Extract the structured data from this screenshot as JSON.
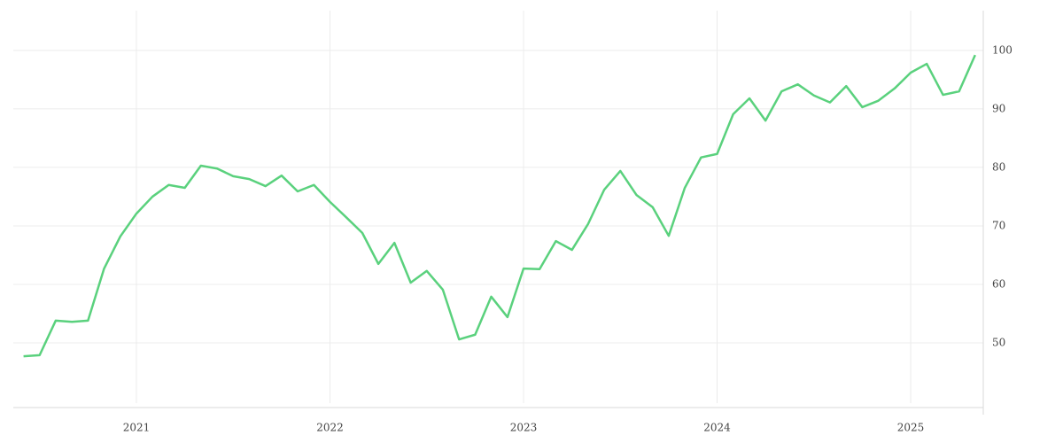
{
  "chart_data": {
    "type": "line",
    "x": [
      2020.417,
      2020.5,
      2020.583,
      2020.667,
      2020.75,
      2020.833,
      2020.917,
      2021,
      2021.083,
      2021.167,
      2021.25,
      2021.333,
      2021.417,
      2021.5,
      2021.583,
      2021.667,
      2021.75,
      2021.833,
      2021.917,
      2022,
      2022.083,
      2022.167,
      2022.25,
      2022.333,
      2022.417,
      2022.5,
      2022.583,
      2022.667,
      2022.75,
      2022.833,
      2022.917,
      2023,
      2023.083,
      2023.167,
      2023.25,
      2023.333,
      2023.417,
      2023.5,
      2023.583,
      2023.667,
      2023.75,
      2023.833,
      2023.917,
      2024,
      2024.083,
      2024.167,
      2024.25,
      2024.333,
      2024.417,
      2024.5,
      2024.583,
      2024.667,
      2024.75,
      2024.833,
      2024.917,
      2025,
      2025.083,
      2025.167,
      2025.25,
      2025.333
    ],
    "series": [
      {
        "color": "#5ad17d",
        "values": [
          47.7,
          47.9,
          53.8,
          53.6,
          53.8,
          62.7,
          68.2,
          72.1,
          75.0,
          77.0,
          76.5,
          80.3,
          79.8,
          78.5,
          78.0,
          76.8,
          78.6,
          75.9,
          77.0,
          74.1,
          71.5,
          68.8,
          63.5,
          67.1,
          60.3,
          62.3,
          59.1,
          50.6,
          51.4,
          57.9,
          54.4,
          62.7,
          62.6,
          67.4,
          65.9,
          70.3,
          76.2,
          79.4,
          75.3,
          73.2,
          68.3,
          76.5,
          81.7,
          82.3,
          89.1,
          91.8,
          88.0,
          93.0,
          94.2,
          92.3,
          91.1,
          93.9,
          90.3,
          91.4,
          93.5,
          96.2,
          97.7,
          92.4,
          93.0,
          99.2
        ]
      }
    ],
    "xlim": [
      2020.364,
      2025.375
    ],
    "xticks": [
      2021,
      2022,
      2023,
      2024,
      2025
    ],
    "ylim": [
      39.7,
      106.8
    ],
    "yticks": [
      50,
      60,
      70,
      80,
      90,
      100
    ],
    "grid": true
  }
}
